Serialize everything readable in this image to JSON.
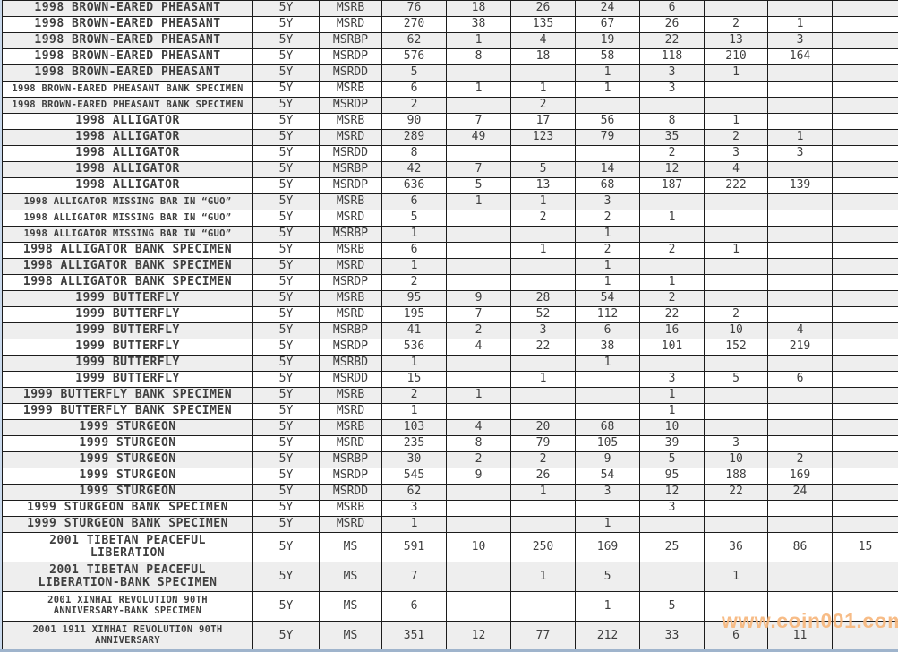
{
  "watermark": {
    "text": "www.coin001.com",
    "color": "#F7B77D"
  },
  "colors": {
    "row_stripe_odd": "#EEEEEE",
    "row_stripe_even": "#FFFFFF",
    "grid_line": "#1C1C1C",
    "coin_name_text": "#6C7D96",
    "value_text": "#3F3F3F",
    "left_edge": "#C9D9EC",
    "bottom_edge": "#9FB4CC",
    "watermark": "#F7B77D"
  },
  "table": {
    "rows": [
      {
        "name": "1998 BROWN-EARED PHEASANT",
        "denom": "5Y",
        "grade": "MSRB",
        "total": "76",
        "counts": [
          "18",
          "26",
          "24",
          "6",
          "",
          "",
          ""
        ]
      },
      {
        "name": "1998 BROWN-EARED PHEASANT",
        "denom": "5Y",
        "grade": "MSRD",
        "total": "270",
        "counts": [
          "38",
          "135",
          "67",
          "26",
          "2",
          "1",
          ""
        ]
      },
      {
        "name": "1998 BROWN-EARED PHEASANT",
        "denom": "5Y",
        "grade": "MSRBP",
        "total": "62",
        "counts": [
          "1",
          "4",
          "19",
          "22",
          "13",
          "3",
          ""
        ]
      },
      {
        "name": "1998 BROWN-EARED PHEASANT",
        "denom": "5Y",
        "grade": "MSRDP",
        "total": "576",
        "counts": [
          "8",
          "18",
          "58",
          "118",
          "210",
          "164",
          ""
        ]
      },
      {
        "name": "1998 BROWN-EARED PHEASANT",
        "denom": "5Y",
        "grade": "MSRDD",
        "total": "5",
        "counts": [
          "",
          "",
          "1",
          "3",
          "1",
          "",
          ""
        ]
      },
      {
        "name": "1998 BROWN-EARED PHEASANT BANK SPECIMEN",
        "compact": true,
        "denom": "5Y",
        "grade": "MSRB",
        "total": "6",
        "counts": [
          "1",
          "1",
          "1",
          "3",
          "",
          "",
          ""
        ]
      },
      {
        "name": "1998 BROWN-EARED PHEASANT BANK SPECIMEN",
        "compact": true,
        "denom": "5Y",
        "grade": "MSRDP",
        "total": "2",
        "counts": [
          "",
          "2",
          "",
          "",
          "",
          "",
          ""
        ]
      },
      {
        "name": "1998 ALLIGATOR",
        "denom": "5Y",
        "grade": "MSRB",
        "total": "90",
        "counts": [
          "7",
          "17",
          "56",
          "8",
          "1",
          "",
          ""
        ]
      },
      {
        "name": "1998 ALLIGATOR",
        "denom": "5Y",
        "grade": "MSRD",
        "total": "289",
        "counts": [
          "49",
          "123",
          "79",
          "35",
          "2",
          "1",
          ""
        ]
      },
      {
        "name": "1998 ALLIGATOR",
        "denom": "5Y",
        "grade": "MSRDD",
        "total": "8",
        "counts": [
          "",
          "",
          "",
          "2",
          "3",
          "3",
          ""
        ]
      },
      {
        "name": "1998 ALLIGATOR",
        "denom": "5Y",
        "grade": "MSRBP",
        "total": "42",
        "counts": [
          "7",
          "5",
          "14",
          "12",
          "4",
          "",
          ""
        ]
      },
      {
        "name": "1998 ALLIGATOR",
        "denom": "5Y",
        "grade": "MSRDP",
        "total": "636",
        "counts": [
          "5",
          "13",
          "68",
          "187",
          "222",
          "139",
          ""
        ]
      },
      {
        "name": "1998 ALLIGATOR MISSING BAR IN “GUO”",
        "compact": true,
        "denom": "5Y",
        "grade": "MSRB",
        "total": "6",
        "counts": [
          "1",
          "1",
          "3",
          "",
          "",
          "",
          ""
        ]
      },
      {
        "name": "1998 ALLIGATOR MISSING BAR IN “GUO”",
        "compact": true,
        "denom": "5Y",
        "grade": "MSRD",
        "total": "5",
        "counts": [
          "",
          "2",
          "2",
          "1",
          "",
          "",
          ""
        ]
      },
      {
        "name": "1998 ALLIGATOR MISSING BAR IN “GUO”",
        "compact": true,
        "denom": "5Y",
        "grade": "MSRBP",
        "total": "1",
        "counts": [
          "",
          "",
          "1",
          "",
          "",
          "",
          ""
        ]
      },
      {
        "name": "1998 ALLIGATOR BANK SPECIMEN",
        "denom": "5Y",
        "grade": "MSRB",
        "total": "6",
        "counts": [
          "",
          "1",
          "2",
          "2",
          "1",
          "",
          ""
        ]
      },
      {
        "name": "1998 ALLIGATOR BANK SPECIMEN",
        "denom": "5Y",
        "grade": "MSRD",
        "total": "1",
        "counts": [
          "",
          "",
          "1",
          "",
          "",
          "",
          ""
        ]
      },
      {
        "name": "1998 ALLIGATOR BANK SPECIMEN",
        "denom": "5Y",
        "grade": "MSRDP",
        "total": "2",
        "counts": [
          "",
          "",
          "1",
          "1",
          "",
          "",
          ""
        ]
      },
      {
        "name": "1999 BUTTERFLY",
        "denom": "5Y",
        "grade": "MSRB",
        "total": "95",
        "counts": [
          "9",
          "28",
          "54",
          "2",
          "",
          "",
          ""
        ]
      },
      {
        "name": "1999 BUTTERFLY",
        "denom": "5Y",
        "grade": "MSRD",
        "total": "195",
        "counts": [
          "7",
          "52",
          "112",
          "22",
          "2",
          "",
          ""
        ]
      },
      {
        "name": "1999 BUTTERFLY",
        "denom": "5Y",
        "grade": "MSRBP",
        "total": "41",
        "counts": [
          "2",
          "3",
          "6",
          "16",
          "10",
          "4",
          ""
        ]
      },
      {
        "name": "1999 BUTTERFLY",
        "denom": "5Y",
        "grade": "MSRDP",
        "total": "536",
        "counts": [
          "4",
          "22",
          "38",
          "101",
          "152",
          "219",
          ""
        ]
      },
      {
        "name": "1999 BUTTERFLY",
        "denom": "5Y",
        "grade": "MSRBD",
        "total": "1",
        "counts": [
          "",
          "",
          "1",
          "",
          "",
          "",
          ""
        ]
      },
      {
        "name": "1999 BUTTERFLY",
        "denom": "5Y",
        "grade": "MSRDD",
        "total": "15",
        "counts": [
          "",
          "1",
          "",
          "3",
          "5",
          "6",
          ""
        ]
      },
      {
        "name": "1999 BUTTERFLY BANK SPECIMEN",
        "denom": "5Y",
        "grade": "MSRB",
        "total": "2",
        "counts": [
          "1",
          "",
          "",
          "1",
          "",
          "",
          ""
        ]
      },
      {
        "name": "1999 BUTTERFLY BANK SPECIMEN",
        "denom": "5Y",
        "grade": "MSRD",
        "total": "1",
        "counts": [
          "",
          "",
          "",
          "1",
          "",
          "",
          ""
        ]
      },
      {
        "name": "1999 STURGEON",
        "denom": "5Y",
        "grade": "MSRB",
        "total": "103",
        "counts": [
          "4",
          "20",
          "68",
          "10",
          "",
          "",
          ""
        ]
      },
      {
        "name": "1999 STURGEON",
        "denom": "5Y",
        "grade": "MSRD",
        "total": "235",
        "counts": [
          "8",
          "79",
          "105",
          "39",
          "3",
          "",
          ""
        ]
      },
      {
        "name": "1999 STURGEON",
        "denom": "5Y",
        "grade": "MSRBP",
        "total": "30",
        "counts": [
          "2",
          "2",
          "9",
          "5",
          "10",
          "2",
          ""
        ]
      },
      {
        "name": "1999 STURGEON",
        "denom": "5Y",
        "grade": "MSRDP",
        "total": "545",
        "counts": [
          "9",
          "26",
          "54",
          "95",
          "188",
          "169",
          ""
        ]
      },
      {
        "name": "1999 STURGEON",
        "denom": "5Y",
        "grade": "MSRDD",
        "total": "62",
        "counts": [
          "",
          "1",
          "3",
          "12",
          "22",
          "24",
          ""
        ]
      },
      {
        "name": "1999 STURGEON BANK SPECIMEN",
        "denom": "5Y",
        "grade": "MSRB",
        "total": "3",
        "counts": [
          "",
          "",
          "",
          "3",
          "",
          "",
          ""
        ]
      },
      {
        "name": "1999 STURGEON BANK SPECIMEN",
        "denom": "5Y",
        "grade": "MSRD",
        "total": "1",
        "counts": [
          "",
          "",
          "1",
          "",
          "",
          "",
          ""
        ]
      },
      {
        "name": "2001 TIBETAN PEACEFUL\nLIBERATION",
        "denom": "5Y",
        "grade": "MS",
        "total": "591",
        "counts": [
          "10",
          "250",
          "169",
          "25",
          "36",
          "86",
          "15"
        ]
      },
      {
        "name": "2001 TIBETAN PEACEFUL\nLIBERATION-BANK SPECIMEN",
        "denom": "5Y",
        "grade": "MS",
        "total": "7",
        "counts": [
          "",
          "1",
          "5",
          "",
          "1",
          "",
          ""
        ]
      },
      {
        "name": "2001 XINHAI REVOLUTION 90TH\nANNIVERSARY-BANK SPECIMEN",
        "compact": true,
        "denom": "5Y",
        "grade": "MS",
        "total": "6",
        "counts": [
          "",
          "",
          "1",
          "5",
          "",
          "",
          ""
        ]
      },
      {
        "name": "2001 1911 XINHAI REVOLUTION 90TH\nANNIVERSARY",
        "compact": true,
        "denom": "5Y",
        "grade": "MS",
        "total": "351",
        "counts": [
          "12",
          "77",
          "212",
          "33",
          "6",
          "11",
          ""
        ]
      }
    ]
  }
}
